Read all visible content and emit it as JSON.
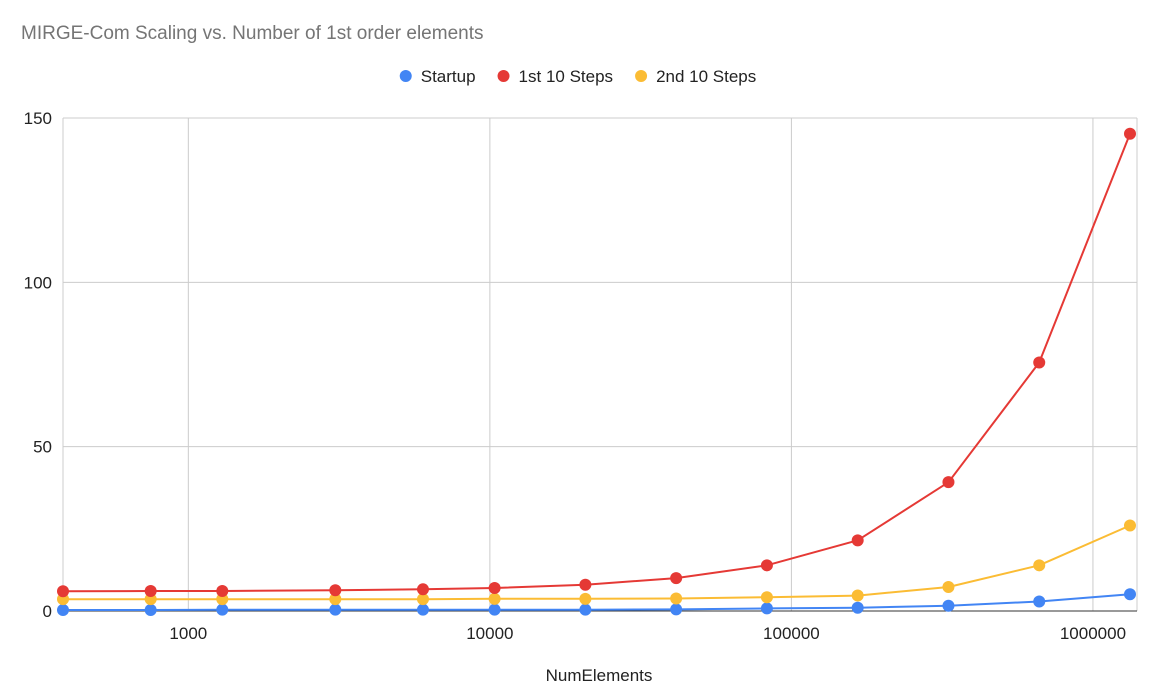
{
  "chart_data": {
    "type": "line",
    "title": "MIRGE-Com Scaling vs. Number of 1st order elements",
    "xlabel": "NumElements",
    "ylabel": "",
    "x_scale": "log",
    "xlim": [
      384,
      1400000
    ],
    "ylim": [
      0,
      150
    ],
    "x_ticks": [
      1000,
      10000,
      100000,
      1000000
    ],
    "x_tick_labels": [
      "1000",
      "10000",
      "100000",
      "1000000"
    ],
    "y_ticks": [
      0,
      50,
      100,
      150
    ],
    "y_tick_labels": [
      "0",
      "50",
      "100",
      "150"
    ],
    "grid": true,
    "legend_position": "top",
    "x": [
      384,
      750,
      1296,
      3072,
      6000,
      10368,
      20736,
      41472,
      82944,
      165888,
      331776,
      663552,
      1327104
    ],
    "series": [
      {
        "name": "Startup",
        "color": "#4285f4",
        "values": [
          0.3,
          0.3,
          0.4,
          0.4,
          0.4,
          0.4,
          0.4,
          0.5,
          0.8,
          1.0,
          1.6,
          2.9,
          5.1
        ]
      },
      {
        "name": "1st 10 Steps",
        "color": "#e53935",
        "values": [
          6.0,
          6.1,
          6.1,
          6.3,
          6.6,
          7.0,
          8.0,
          10.0,
          13.9,
          21.5,
          39.2,
          75.6,
          145.2
        ]
      },
      {
        "name": "2nd 10 Steps",
        "color": "#fbbc34",
        "values": [
          3.6,
          3.6,
          3.6,
          3.6,
          3.6,
          3.7,
          3.7,
          3.8,
          4.2,
          4.7,
          7.3,
          13.9,
          26.0
        ]
      }
    ]
  }
}
